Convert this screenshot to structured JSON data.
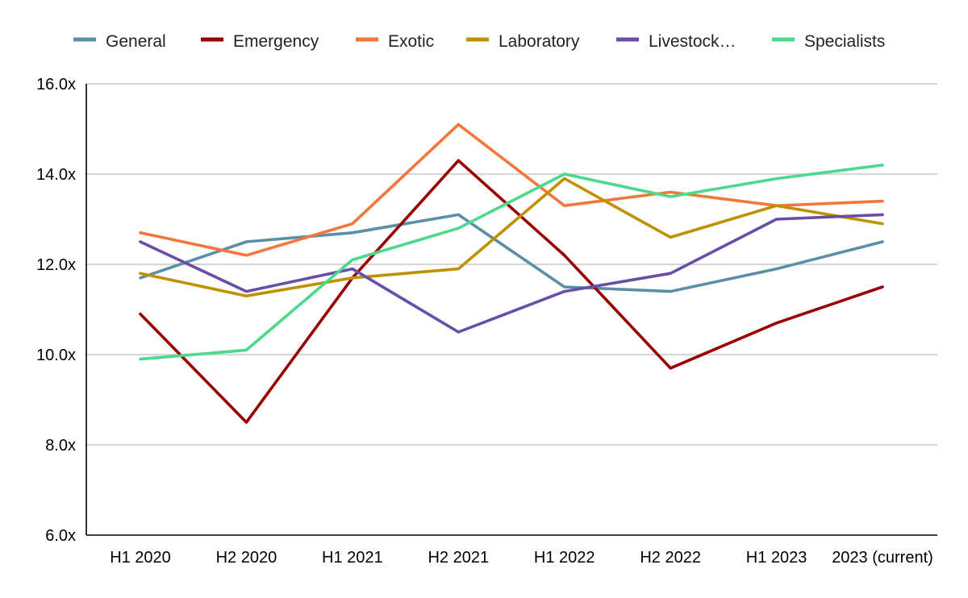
{
  "chart_data": {
    "type": "line",
    "title": "",
    "xlabel": "",
    "ylabel": "",
    "categories": [
      "H1 2020",
      "H2 2020",
      "H1 2021",
      "H2 2021",
      "H1 2022",
      "H2 2022",
      "H1 2023",
      "2023 (current)"
    ],
    "y_ticks": [
      "6.0x",
      "8.0x",
      "10.0x",
      "12.0x",
      "14.0x",
      "16.0x"
    ],
    "ylim": [
      6,
      16
    ],
    "grid": true,
    "legend_position": "top",
    "series": [
      {
        "name": "General",
        "color": "#5b8fa8",
        "values": [
          11.7,
          12.5,
          12.7,
          13.1,
          11.5,
          11.4,
          11.9,
          12.5
        ]
      },
      {
        "name": "Emergency",
        "color": "#990000",
        "values": [
          10.9,
          8.5,
          11.7,
          14.3,
          12.2,
          9.7,
          10.7,
          11.5
        ]
      },
      {
        "name": "Exotic",
        "color": "#f4763a",
        "values": [
          12.7,
          12.2,
          12.9,
          15.1,
          13.3,
          13.6,
          13.3,
          13.4
        ]
      },
      {
        "name": "Laboratory",
        "color": "#bf9000",
        "values": [
          11.8,
          11.3,
          11.7,
          11.9,
          13.9,
          12.6,
          13.3,
          12.9
        ]
      },
      {
        "name": "Livestock…",
        "color": "#674ea7",
        "values": [
          12.5,
          11.4,
          11.9,
          10.5,
          11.4,
          11.8,
          13.0,
          13.1
        ]
      },
      {
        "name": "Specialists",
        "color": "#4dd98c",
        "values": [
          9.9,
          10.1,
          12.1,
          12.8,
          14.0,
          13.5,
          13.9,
          14.2
        ]
      }
    ]
  }
}
